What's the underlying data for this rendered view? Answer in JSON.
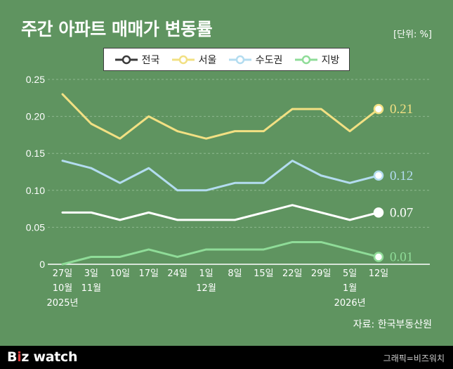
{
  "header": {
    "title": "주간 아파트 매매가 변동률",
    "unit": "[단위: %]"
  },
  "source": "자료: 한국부동산원",
  "footer": {
    "brand_b": "B",
    "brand_i": "i",
    "brand_z": "z",
    "brand_rest": " watch",
    "credit": "그래픽=비즈워치"
  },
  "colors": {
    "background": "#5f9460",
    "national": "#ffffff",
    "seoul": "#f2e083",
    "metro": "#b3dcf0",
    "regional": "#8fdc98"
  },
  "chart_data": {
    "type": "line",
    "title": "주간 아파트 매매가 변동률",
    "xlabel": "",
    "ylabel": "",
    "ylim": [
      0,
      0.25
    ],
    "yticks": [
      "0",
      "0.05",
      "0.10",
      "0.15",
      "0.20",
      "0.25"
    ],
    "grid": "horizontal-dashed",
    "legend_position": "top",
    "categories": [
      "27일 10월 2025년",
      "3일 11월",
      "10일",
      "17일",
      "24일",
      "1일 12월",
      "8일",
      "15일",
      "22일",
      "29일",
      "5일 1월 2026년",
      "12일"
    ],
    "x_tick_lines": [
      [
        "27일",
        "10월",
        "2025년"
      ],
      [
        "3일",
        "11월",
        ""
      ],
      [
        "10일",
        "",
        ""
      ],
      [
        "17일",
        "",
        ""
      ],
      [
        "24일",
        "",
        ""
      ],
      [
        "1일",
        "12월",
        ""
      ],
      [
        "8일",
        "",
        ""
      ],
      [
        "15일",
        "",
        ""
      ],
      [
        "22일",
        "",
        ""
      ],
      [
        "29일",
        "",
        ""
      ],
      [
        "5일",
        "1월",
        "2026년"
      ],
      [
        "12일",
        "",
        ""
      ]
    ],
    "series": [
      {
        "name": "전국",
        "color": "#ffffff",
        "values": [
          0.07,
          0.07,
          0.06,
          0.07,
          0.06,
          0.06,
          0.06,
          0.07,
          0.08,
          0.07,
          0.06,
          0.07
        ],
        "end_label": "0.07"
      },
      {
        "name": "서울",
        "color": "#f2e083",
        "values": [
          0.23,
          0.19,
          0.17,
          0.2,
          0.18,
          0.17,
          0.18,
          0.18,
          0.21,
          0.21,
          0.18,
          0.21
        ],
        "end_label": "0.21"
      },
      {
        "name": "수도권",
        "color": "#b3dcf0",
        "values": [
          0.14,
          0.13,
          0.11,
          0.13,
          0.1,
          0.1,
          0.11,
          0.11,
          0.14,
          0.12,
          0.11,
          0.12
        ],
        "end_label": "0.12"
      },
      {
        "name": "지방",
        "color": "#8fdc98",
        "values": [
          0.0,
          0.01,
          0.01,
          0.02,
          0.01,
          0.02,
          0.02,
          0.02,
          0.03,
          0.03,
          0.02,
          0.01
        ],
        "end_label": "0.01"
      }
    ]
  }
}
